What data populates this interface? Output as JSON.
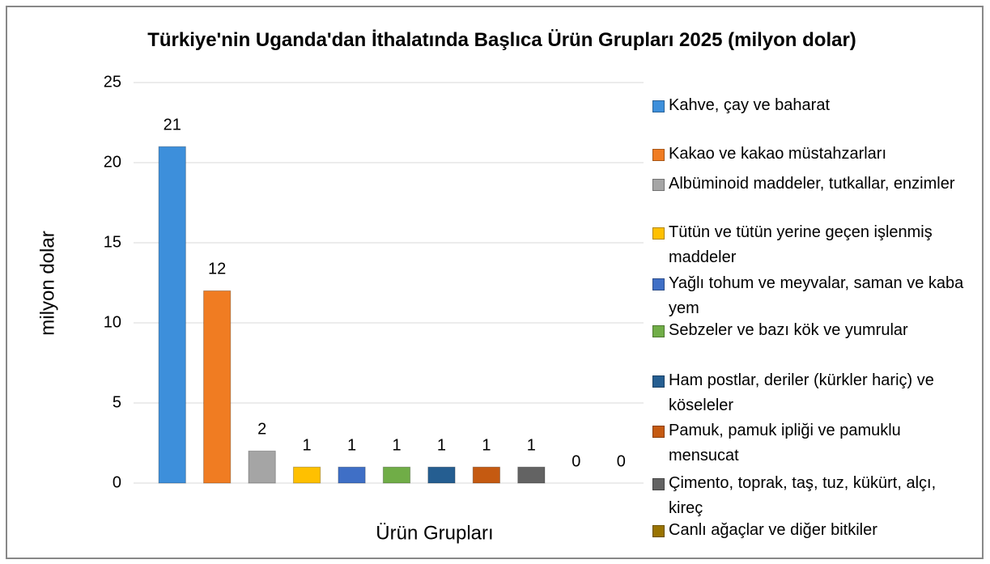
{
  "chart_data": {
    "type": "bar",
    "title": "Türkiye'nin Uganda'dan İthalatında Başlıca Ürün Grupları 2025 (milyon dolar)",
    "y_label": "milyon dolar",
    "x_label": "Ürün Grupları",
    "categories": [
      "Kahve, çay ve baharat",
      "Kakao ve kakao müstahzarları",
      "Albüminoid maddeler, tutkallar, enzimler",
      "Tütün ve tütün yerine geçen işlenmiş maddeler",
      "Yağlı tohum ve meyvalar, saman ve kaba yem",
      "Sebzeler ve bazı kök ve yumrular",
      "Ham postlar, deriler (kürkler hariç) ve köseleler",
      "Pamuk, pamuk ipliği ve pamuklu mensucat",
      "Çimento, toprak, taş, tuz, kükürt, alçı, kireç",
      "Canlı ağaçlar ve diğer bitkiler",
      null
    ],
    "values": [
      21,
      12,
      2,
      1,
      1,
      1,
      1,
      1,
      1,
      0,
      0
    ],
    "colors": [
      "#3d8fdb",
      "#f07c22",
      "#a5a5a5",
      "#ffc000",
      "#3f6fc6",
      "#70ad47",
      "#255e91",
      "#c55a11",
      "#636363",
      "#997300",
      "#264478"
    ],
    "ylim": [
      0,
      25
    ],
    "yticks": [
      0,
      5,
      10,
      15,
      20,
      25
    ],
    "grid": true,
    "legend": "right"
  }
}
